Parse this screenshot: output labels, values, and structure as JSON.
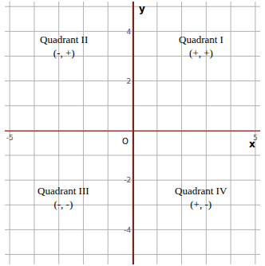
{
  "chart_data": {
    "type": "coordinate_plane",
    "xlim": [
      -5.2,
      5.2
    ],
    "ylim": [
      -5.4,
      5.2
    ],
    "xticks": [
      -5,
      5
    ],
    "yticks": [
      -4,
      -2,
      2,
      4
    ],
    "x_gridlines": [
      -5,
      -4,
      -3,
      -2,
      -1,
      0,
      1,
      2,
      3,
      4,
      5
    ],
    "y_gridlines": [
      -5,
      -4,
      -3,
      -2,
      -1,
      0,
      1,
      2,
      3,
      4,
      5
    ],
    "grid": true,
    "x_label": "x",
    "y_label": "y",
    "origin_label": "O",
    "quadrants": [
      {
        "name": "Quadrant I",
        "signs": "(+, +)"
      },
      {
        "name": "Quadrant II",
        "signs": "(-, +)"
      },
      {
        "name": "Quadrant III",
        "signs": "(-, -)"
      },
      {
        "name": "Quadrant IV",
        "signs": "(+, -)"
      }
    ]
  }
}
